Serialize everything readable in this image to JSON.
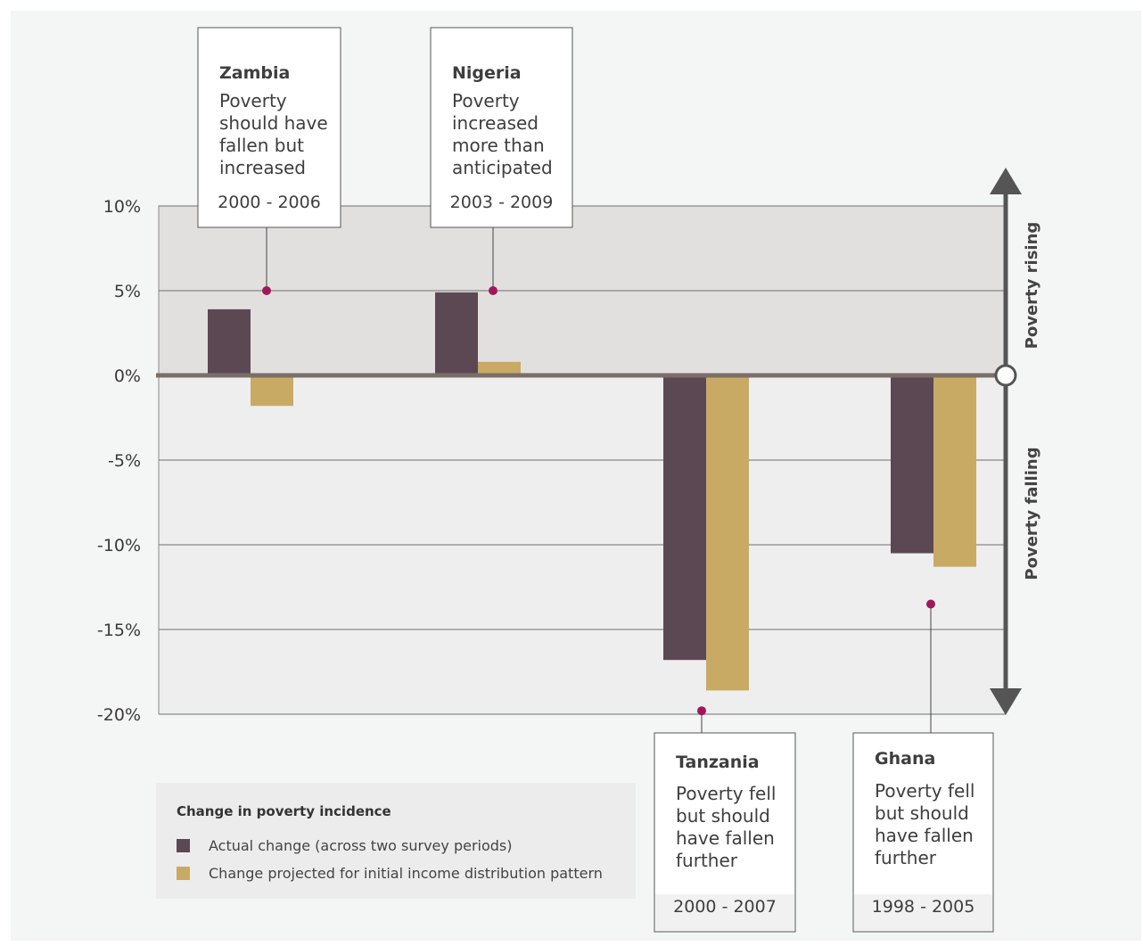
{
  "chart_data": {
    "type": "bar",
    "categories": [
      "Zambia",
      "Nigeria",
      "Tanzania",
      "Ghana"
    ],
    "series": [
      {
        "name": "Actual change (across two survey periods)",
        "values": [
          3.9,
          4.9,
          -16.8,
          -10.5
        ]
      },
      {
        "name": "Change projected for initial income distribution pattern",
        "values": [
          -1.8,
          0.8,
          -18.6,
          -11.3
        ]
      }
    ],
    "ylim": [
      -20,
      10
    ],
    "yticks": [
      10,
      5,
      0,
      -5,
      -10,
      -15,
      -20
    ],
    "ytick_labels": [
      "10%",
      "5%",
      "0%",
      "-5%",
      "-10%",
      "-15%",
      "-20%"
    ],
    "grid": true,
    "colors": {
      "actual": "#5c4853",
      "projected": "#c9aa65",
      "marker": "#a0185a",
      "zero_line": "#7a6e68",
      "arrow": "#555555"
    },
    "side_labels": {
      "up": "Poverty rising",
      "down": "Poverty falling"
    },
    "legend": {
      "title": "Change in poverty incidence",
      "items": [
        "Actual change (across two survey periods)",
        "Change projected for initial income distribution pattern"
      ],
      "placement": "bottom-left"
    },
    "annotations": [
      {
        "country": "Zambia",
        "text": [
          "Poverty",
          "should have",
          "fallen but",
          "increased"
        ],
        "period": "2000 - 2006",
        "marker_value": 5
      },
      {
        "country": "Nigeria",
        "text": [
          "Poverty",
          "increased",
          "more than",
          "anticipated"
        ],
        "period": "2003 - 2009",
        "marker_value": 5
      },
      {
        "country": "Tanzania",
        "text": [
          "Poverty fell",
          "but should",
          "have fallen",
          "further"
        ],
        "period": "2000 - 2007",
        "marker_value": -19.8
      },
      {
        "country": "Ghana",
        "text": [
          "Poverty fell",
          "but should",
          "have fallen",
          "further"
        ],
        "period": "1998 - 2005",
        "marker_value": -13.5
      }
    ]
  }
}
